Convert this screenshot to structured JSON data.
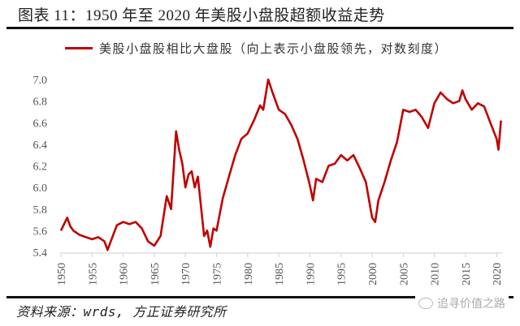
{
  "header": {
    "title": "图表 11：1950 年至 2020 年美股小盘股超额收益走势"
  },
  "legend": {
    "label": "美股小盘股相比大盘股（向上表示小盘股领先，对数刻度）",
    "color": "#c00000"
  },
  "footer": {
    "source": "资料来源：wrds, 方正证券研究所",
    "watermark": "追寻价值之路"
  },
  "chart_data": {
    "type": "line",
    "title": "图表 11：1950 年至 2020 年美股小盘股超额收益走势",
    "xlabel": "",
    "ylabel": "",
    "ylim": [
      5.4,
      7.0
    ],
    "xlim": [
      1950,
      2021
    ],
    "grid": false,
    "legend_position": "top",
    "yticks": [
      "5.4",
      "5.6",
      "5.8",
      "6.0",
      "6.2",
      "6.4",
      "6.6",
      "6.8",
      "7.0"
    ],
    "xticks": [
      "1950",
      "1955",
      "1960",
      "1965",
      "1970",
      "1975",
      "1980",
      "1985",
      "1990",
      "1995",
      "2000",
      "2005",
      "2010",
      "2015",
      "2020"
    ],
    "series": [
      {
        "name": "美股小盘股相比大盘股（向上表示小盘股领先，对数刻度）",
        "color": "#c00000",
        "x": [
          1950,
          1950.5,
          1951,
          1951.5,
          1952,
          1953,
          1954,
          1955,
          1956,
          1957,
          1957.5,
          1958,
          1959,
          1960,
          1961,
          1962,
          1963,
          1964,
          1965,
          1966,
          1967,
          1967.7,
          1968.5,
          1969,
          1969.5,
          1970,
          1970.5,
          1971,
          1971.5,
          1972,
          1973,
          1973.5,
          1974,
          1974.5,
          1975,
          1976,
          1977,
          1978,
          1979,
          1980,
          1981,
          1982,
          1982.5,
          1983.3,
          1984,
          1985,
          1986,
          1987,
          1988,
          1989,
          1990,
          1990.5,
          1991,
          1992,
          1993,
          1994,
          1995,
          1996,
          1997,
          1998,
          1999,
          2000,
          2000.5,
          2001,
          2002,
          2003,
          2004,
          2005,
          2006,
          2007,
          2008,
          2009,
          2010,
          2011,
          2012,
          2013,
          2014,
          2014.5,
          2015,
          2016,
          2017,
          2018,
          2019,
          2020,
          2020.3,
          2020.7
        ],
        "values": [
          5.6,
          5.66,
          5.72,
          5.64,
          5.6,
          5.56,
          5.54,
          5.52,
          5.54,
          5.5,
          5.42,
          5.5,
          5.65,
          5.68,
          5.66,
          5.68,
          5.62,
          5.5,
          5.46,
          5.55,
          5.92,
          5.8,
          6.52,
          6.35,
          6.22,
          6.0,
          6.12,
          6.15,
          6.0,
          6.1,
          5.55,
          5.6,
          5.45,
          5.62,
          5.6,
          5.9,
          6.1,
          6.3,
          6.45,
          6.5,
          6.62,
          6.76,
          6.72,
          7.0,
          6.88,
          6.72,
          6.68,
          6.58,
          6.45,
          6.25,
          6.02,
          5.88,
          6.08,
          6.05,
          6.2,
          6.22,
          6.3,
          6.25,
          6.3,
          6.18,
          6.05,
          5.72,
          5.68,
          5.88,
          6.05,
          6.25,
          6.42,
          6.72,
          6.7,
          6.72,
          6.65,
          6.55,
          6.78,
          6.88,
          6.82,
          6.78,
          6.8,
          6.9,
          6.82,
          6.72,
          6.78,
          6.75,
          6.6,
          6.45,
          6.35,
          6.62
        ]
      }
    ]
  }
}
